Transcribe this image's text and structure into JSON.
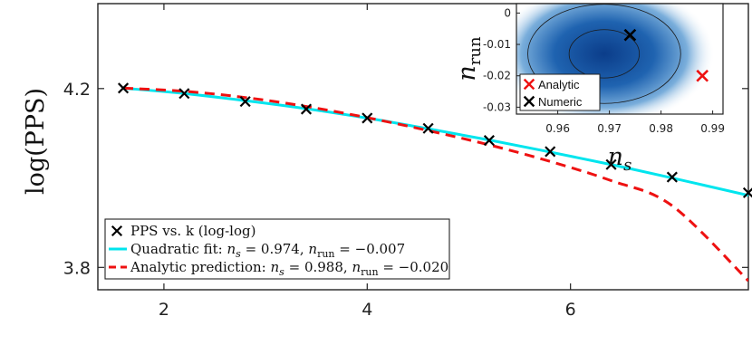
{
  "chart_data": [
    {
      "id": "main",
      "type": "line",
      "title": "",
      "xlabel": "",
      "ylabel": "log(PPS)",
      "xlim": [
        1.35,
        7.75
      ],
      "ylim": [
        3.75,
        4.39
      ],
      "xticks": [
        2,
        4,
        6
      ],
      "yticks": [
        3.8,
        4.2
      ],
      "xtick_labels": [
        "2",
        "4",
        "6"
      ],
      "ytick_labels": [
        "3.8",
        "4.2"
      ],
      "grid": false,
      "legend_position": "bottom-left",
      "series": [
        {
          "name": "PPS vs. k (log-log)",
          "kind": "scatter",
          "marker": "x",
          "color": "#000000",
          "x": [
            1.6,
            2.2,
            2.8,
            3.4,
            4.0,
            4.6,
            5.2,
            5.8,
            6.4,
            7.0,
            7.75
          ],
          "y": [
            4.201,
            4.189,
            4.171,
            4.154,
            4.134,
            4.111,
            4.084,
            4.059,
            4.03,
            4.002,
            3.967
          ]
        },
        {
          "name": "Quadratic fit: n_s = 0.974, n_run = -0.007",
          "kind": "line",
          "style": "solid",
          "color": "#00e5ee",
          "x": [
            1.6,
            2.2,
            2.8,
            3.4,
            4.0,
            4.6,
            5.2,
            5.8,
            6.4,
            7.0,
            7.75
          ],
          "y": [
            4.201,
            4.189,
            4.173,
            4.155,
            4.134,
            4.11,
            4.085,
            4.058,
            4.03,
            4.0,
            3.961
          ]
        },
        {
          "name": "Analytic prediction: n_s = 0.988, n_run = -0.020",
          "kind": "line",
          "style": "dashed",
          "color": "#ee1111",
          "x": [
            1.6,
            2.2,
            2.8,
            3.4,
            4.0,
            4.6,
            5.2,
            5.8,
            6.4,
            7.0,
            7.75
          ],
          "y": [
            4.201,
            4.194,
            4.18,
            4.16,
            4.135,
            4.106,
            4.074,
            4.037,
            3.994,
            3.938,
            3.77
          ]
        }
      ],
      "legend": {
        "entries": [
          {
            "prefix": "PPS vs. k (log-log)",
            "ns": "",
            "nrun": ""
          },
          {
            "prefix": "Quadratic fit: ",
            "ns": "0.974",
            "nrun": "−0.007"
          },
          {
            "prefix": "Analytic prediction: ",
            "ns": "0.988",
            "nrun": "−0.020"
          }
        ]
      }
    },
    {
      "id": "inset",
      "type": "heatmap",
      "title": "",
      "xlabel": "n_s",
      "ylabel": "n_run",
      "xlim": [
        0.952,
        0.992
      ],
      "ylim": [
        -0.0322,
        0.003
      ],
      "xticks": [
        0.96,
        0.97,
        0.98,
        0.99
      ],
      "yticks": [
        0,
        -0.01,
        -0.02,
        -0.03
      ],
      "xtick_labels": [
        "0.96",
        "0.97",
        "0.98",
        "0.99"
      ],
      "ytick_labels": [
        "0",
        "-0.01",
        "-0.02",
        "-0.03"
      ],
      "density": {
        "center": [
          0.969,
          -0.013
        ],
        "contours": [
          {
            "level": "inner",
            "rx": 0.0068,
            "ry": 0.0077
          },
          {
            "level": "outer",
            "rx": 0.0148,
            "ry": 0.0158
          }
        ],
        "colors": [
          "#0b3d8a",
          "#3f84c4",
          "#ffffff"
        ]
      },
      "points": [
        {
          "name": "Analytic",
          "x": 0.988,
          "y": -0.02,
          "color": "#ee1111",
          "marker": "x"
        },
        {
          "name": "Numeric",
          "x": 0.974,
          "y": -0.007,
          "color": "#000000",
          "marker": "x"
        }
      ],
      "legend_position": "bottom-left",
      "legend": {
        "entries": [
          "Analytic",
          "Numeric"
        ]
      }
    }
  ]
}
